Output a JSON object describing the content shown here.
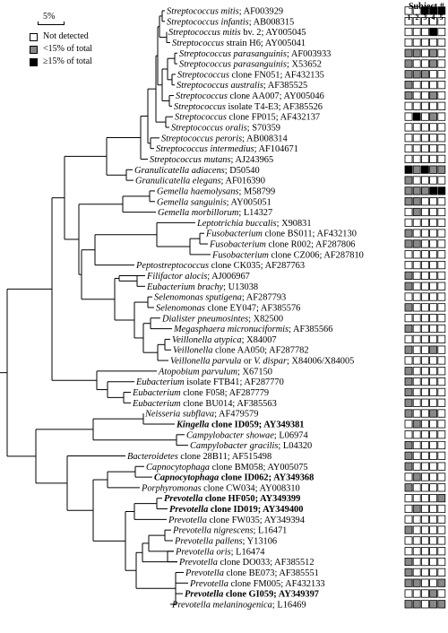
{
  "scale": {
    "label": "5%"
  },
  "legend": {
    "items": [
      {
        "label": "Not detected",
        "color": "#ffffff"
      },
      {
        "label": "<15% of total",
        "color": "#888888"
      },
      {
        "label": "≥15% of total",
        "color": "#000000"
      }
    ]
  },
  "subjects": {
    "title": "Subject #",
    "numbers": [
      "1",
      "2",
      "3",
      "4",
      "5"
    ]
  },
  "taxa": [
    {
      "name": "Streptococcus mitis",
      "acc": "; AF003929",
      "bold": false,
      "cells": [
        0,
        0,
        2,
        2,
        2
      ]
    },
    {
      "name": "Streptococcus infantis",
      "acc": "; AB008315",
      "bold": false,
      "cells": [
        0,
        0,
        0,
        0,
        0
      ]
    },
    {
      "name": "Streptococcus mitis",
      "extra": " bv. 2",
      "acc": "; AY005045",
      "bold": false,
      "cells": [
        0,
        0,
        0,
        2,
        0
      ]
    },
    {
      "name": "Streptococcus",
      "extra": " strain H6",
      "acc": "; AY005041",
      "bold": false,
      "cells": [
        0,
        0,
        0,
        0,
        0
      ]
    },
    {
      "name": "Streptococcus parasanguinis",
      "acc": "; AF003933",
      "bold": false,
      "cells": [
        1,
        1,
        0,
        1,
        0
      ]
    },
    {
      "name": "Streptococcus parasanguinis",
      "acc": "; X53652",
      "bold": false,
      "cells": [
        1,
        0,
        0,
        1,
        0
      ]
    },
    {
      "name": "Streptococcus",
      "extra": " clone FN051",
      "acc": "; AF432135",
      "bold": false,
      "cells": [
        1,
        1,
        1,
        0,
        0
      ]
    },
    {
      "name": "Streptococcus australis",
      "acc": "; AF385525",
      "bold": false,
      "cells": [
        1,
        0,
        0,
        0,
        0
      ]
    },
    {
      "name": "Streptococcus",
      "extra": " clone AA007",
      "acc": "; AY005046",
      "bold": false,
      "cells": [
        1,
        0,
        0,
        1,
        0
      ]
    },
    {
      "name": "Streptococcus",
      "extra": " isolate T4-E3",
      "acc": "; AF385526",
      "bold": false,
      "cells": [
        0,
        0,
        0,
        0,
        0
      ]
    },
    {
      "name": "Streptococcus",
      "extra": " clone FP015",
      "acc": "; AF432137",
      "bold": false,
      "cells": [
        0,
        2,
        0,
        1,
        0
      ]
    },
    {
      "name": "Streptococcus oralis",
      "acc": "; S70359",
      "bold": false,
      "cells": [
        0,
        0,
        0,
        0,
        0
      ]
    },
    {
      "name": "Streptococcus peroris",
      "acc": "; AB008314",
      "bold": false,
      "cells": [
        0,
        0,
        0,
        0,
        0
      ]
    },
    {
      "name": "Streptococcus intermedius",
      "acc": "; AF104671",
      "bold": false,
      "cells": [
        0,
        0,
        0,
        0,
        0
      ]
    },
    {
      "name": "Streptococcus mutans",
      "acc": "; AJ243965",
      "bold": false,
      "cells": [
        0,
        0,
        0,
        0,
        0
      ]
    },
    {
      "name": "Granulicatella adiacens",
      "acc": "; D50540",
      "bold": false,
      "cells": [
        2,
        1,
        2,
        1,
        1
      ]
    },
    {
      "name": "Granulicatella elegans",
      "acc": "; AF016390",
      "bold": false,
      "cells": [
        1,
        0,
        0,
        0,
        0
      ]
    },
    {
      "name": "Gemella haemolysans",
      "acc": "; M58799",
      "bold": false,
      "cells": [
        1,
        1,
        1,
        2,
        2
      ]
    },
    {
      "name": "Gemella sanguinis",
      "acc": "; AY005051",
      "bold": false,
      "cells": [
        1,
        1,
        0,
        0,
        0
      ]
    },
    {
      "name": "Gemella morbillorum",
      "acc": "; L14327",
      "bold": false,
      "cells": [
        0,
        1,
        0,
        0,
        0
      ]
    },
    {
      "name": "Leptotrichia buccalis",
      "acc": "; X90831",
      "bold": false,
      "cells": [
        0,
        0,
        0,
        0,
        0
      ]
    },
    {
      "name": "Fusobacterium",
      "extra": " clone BS011",
      "acc": "; AF432130",
      "bold": false,
      "cells": [
        1,
        0,
        0,
        0,
        0
      ]
    },
    {
      "name": "Fusobacterium",
      "extra": " clone R002",
      "acc": "; AF287806",
      "bold": false,
      "cells": [
        1,
        1,
        0,
        0,
        0
      ]
    },
    {
      "name": "Fusobacterium",
      "extra": " clone CZ006",
      "acc": "; AF287810",
      "bold": false,
      "cells": [
        0,
        0,
        0,
        0,
        0
      ]
    },
    {
      "name": "Peptostreptococcus",
      "extra": " clone CK035",
      "acc": "; AF287763",
      "bold": false,
      "cells": [
        0,
        0,
        0,
        0,
        0
      ]
    },
    {
      "name": "Filifactor alocis",
      "acc": "; AJ006967",
      "bold": false,
      "cells": [
        1,
        0,
        0,
        0,
        0
      ]
    },
    {
      "name": "Eubacterium brachy",
      "acc": "; U13038",
      "bold": false,
      "cells": [
        1,
        0,
        0,
        0,
        0
      ]
    },
    {
      "name": "Selenomonas sputigena",
      "acc": "; AF287793",
      "bold": false,
      "cells": [
        0,
        0,
        0,
        0,
        0
      ]
    },
    {
      "name": "Selenomonas",
      "extra": " clone EY047",
      "acc": "; AF385576",
      "bold": false,
      "cells": [
        1,
        0,
        0,
        0,
        0
      ]
    },
    {
      "name": "Dialister pneumosintes",
      "acc": "; X82500",
      "bold": false,
      "cells": [
        0,
        0,
        0,
        0,
        0
      ]
    },
    {
      "name": "Megasphaera micronuciformis",
      "acc": "; AF385566",
      "bold": false,
      "cells": [
        1,
        0,
        0,
        0,
        0
      ]
    },
    {
      "name": "Veillonella atypica",
      "acc": "; X84007",
      "bold": false,
      "cells": [
        0,
        0,
        0,
        0,
        0
      ]
    },
    {
      "name": "Veillonella",
      "extra": " clone AA050",
      "acc": "; AF287782",
      "bold": false,
      "cells": [
        1,
        0,
        0,
        1,
        0
      ]
    },
    {
      "name": "Veillonella parvula",
      "extra": " or ",
      "name2": "V. dispar",
      "acc": "; X84006/X84005",
      "bold": false,
      "cells": [
        0,
        0,
        0,
        0,
        0
      ]
    },
    {
      "name": "Atopobium parvulum",
      "acc": "; X67150",
      "bold": false,
      "cells": [
        1,
        0,
        0,
        0,
        0
      ]
    },
    {
      "name": "Eubacterium",
      "extra": " isolate FTB41",
      "acc": "; AF287770",
      "bold": false,
      "cells": [
        1,
        0,
        0,
        0,
        0
      ]
    },
    {
      "name": "Eubacterium",
      "extra": " clone F058",
      "acc": "; AF287779",
      "bold": false,
      "cells": [
        1,
        0,
        0,
        0,
        0
      ]
    },
    {
      "name": "Eubacterium",
      "extra": " clone BU014",
      "acc": "; AF385563",
      "bold": false,
      "cells": [
        1,
        0,
        0,
        0,
        0
      ]
    },
    {
      "name": "Neisseria subflava",
      "acc": "; AF479579",
      "bold": false,
      "cells": [
        1,
        0,
        0,
        1,
        0
      ]
    },
    {
      "name": "Kingella",
      "extra": " clone ID059",
      "acc": "; AY349381",
      "bold": true,
      "cells": [
        0,
        1,
        0,
        0,
        0
      ]
    },
    {
      "name": "Campylobacter showae",
      "acc": "; L06974",
      "bold": false,
      "cells": [
        0,
        0,
        0,
        0,
        0
      ]
    },
    {
      "name": "Campylobacter gracilis",
      "acc": "; L04320",
      "bold": false,
      "cells": [
        1,
        0,
        0,
        0,
        0
      ]
    },
    {
      "name": "Bacteroidetes",
      "extra": " clone 28B11",
      "acc": "; AF515498",
      "bold": false,
      "cells": [
        1,
        0,
        0,
        0,
        0
      ]
    },
    {
      "name": "Capnocytophaga",
      "extra": " clone BM058",
      "acc": "; AY005075",
      "bold": false,
      "cells": [
        1,
        0,
        0,
        0,
        0
      ]
    },
    {
      "name": "Capnocytophaga",
      "extra": " clone ID062",
      "acc": "; AY349368",
      "bold": true,
      "cells": [
        0,
        1,
        0,
        0,
        0
      ]
    },
    {
      "name": "Porphyromonas",
      "extra": " clone CW034",
      "acc": "; AY008310",
      "bold": false,
      "cells": [
        1,
        0,
        0,
        0,
        0
      ]
    },
    {
      "name": "Prevotella",
      "extra": " clone HF050",
      "acc": "; AY349399",
      "bold": true,
      "cells": [
        0,
        0,
        0,
        0,
        1
      ]
    },
    {
      "name": "Prevotella",
      "extra": " clone ID019",
      "acc": "; AY349400",
      "bold": true,
      "cells": [
        0,
        1,
        0,
        0,
        0
      ]
    },
    {
      "name": "Prevotella",
      "extra": " clone FW035",
      "acc": "; AY349394",
      "bold": false,
      "cells": [
        0,
        0,
        0,
        0,
        0
      ]
    },
    {
      "name": "Prevotella nigrescens",
      "acc": "; L16471",
      "bold": false,
      "cells": [
        1,
        0,
        0,
        0,
        0
      ]
    },
    {
      "name": "Prevotella pallens",
      "acc": "; Y13106",
      "bold": false,
      "cells": [
        0,
        0,
        0,
        0,
        0
      ]
    },
    {
      "name": "Prevotella oris",
      "acc": "; L16474",
      "bold": false,
      "cells": [
        0,
        0,
        0,
        0,
        0
      ]
    },
    {
      "name": "Prevotella",
      "extra": " clone DO033",
      "acc": "; AF385512",
      "bold": false,
      "cells": [
        1,
        0,
        0,
        0,
        0
      ]
    },
    {
      "name": "Prevotella",
      "extra": " clone BE073",
      "acc": "; AF385551",
      "bold": false,
      "cells": [
        1,
        0,
        0,
        0,
        0
      ]
    },
    {
      "name": "Prevotella",
      "extra": " clone FM005",
      "acc": "; AF432133",
      "bold": false,
      "cells": [
        1,
        1,
        0,
        0,
        1
      ]
    },
    {
      "name": "Prevotella",
      "extra": " clone GI059",
      "acc": "; AY349397",
      "bold": true,
      "cells": [
        0,
        0,
        0,
        1,
        0
      ]
    },
    {
      "name": "Prevotella melaninogenica",
      "acc": "; L16469",
      "bold": false,
      "cells": [
        1,
        1,
        0,
        1,
        1
      ]
    }
  ],
  "tips_x": [
    184,
    184,
    186,
    190,
    198,
    198,
    196,
    195,
    194,
    192,
    193,
    189,
    178,
    172,
    165,
    148,
    149,
    173,
    173,
    174,
    218,
    228,
    232,
    235,
    150,
    162,
    162,
    170,
    172,
    179,
    192,
    190,
    191,
    188,
    175,
    150,
    146,
    146,
    160,
    195,
    206,
    210,
    140,
    161,
    170,
    156,
    181,
    187,
    186,
    191,
    193,
    194,
    198,
    205,
    210,
    204,
    190
  ],
  "groups": [
    {
      "leaves": [
        0,
        1
      ],
      "x": 181
    },
    {
      "leaves": [
        2,
        3
      ],
      "x": 186
    },
    {
      "leaves": [
        4,
        5
      ],
      "x": 195
    },
    {
      "leaves": [
        6,
        7
      ],
      "x": 192
    },
    {
      "leaves": [
        8,
        9
      ],
      "x": 189
    },
    {
      "leaves": [
        10,
        11
      ],
      "x": 185
    },
    {
      "leaves": [
        12,
        13
      ],
      "x": 168
    },
    {
      "leaves": [
        15,
        16
      ],
      "x": 141
    },
    {
      "leaves": [
        17,
        18
      ],
      "x": 167
    },
    {
      "leaves": [
        21,
        22
      ],
      "x": 223
    },
    {
      "leaves": [
        25,
        26
      ],
      "x": 153
    },
    {
      "leaves": [
        27,
        28
      ],
      "x": 165
    },
    {
      "leaves": [
        29,
        30
      ],
      "x": 168
    },
    {
      "leaves": [
        31,
        32
      ],
      "x": 184
    },
    {
      "leaves": [
        36,
        37
      ],
      "x": 138
    },
    {
      "leaves": [
        40,
        41
      ],
      "x": 197
    },
    {
      "leaves": [
        43,
        44
      ],
      "x": 151
    },
    {
      "leaves": [
        46,
        47
      ],
      "x": 175
    },
    {
      "leaves": [
        49,
        50
      ],
      "x": 184
    },
    {
      "leaves": [
        51,
        52
      ],
      "x": 187
    },
    {
      "leaves": [
        53,
        54,
        55,
        56
      ],
      "x": 196
    }
  ]
}
